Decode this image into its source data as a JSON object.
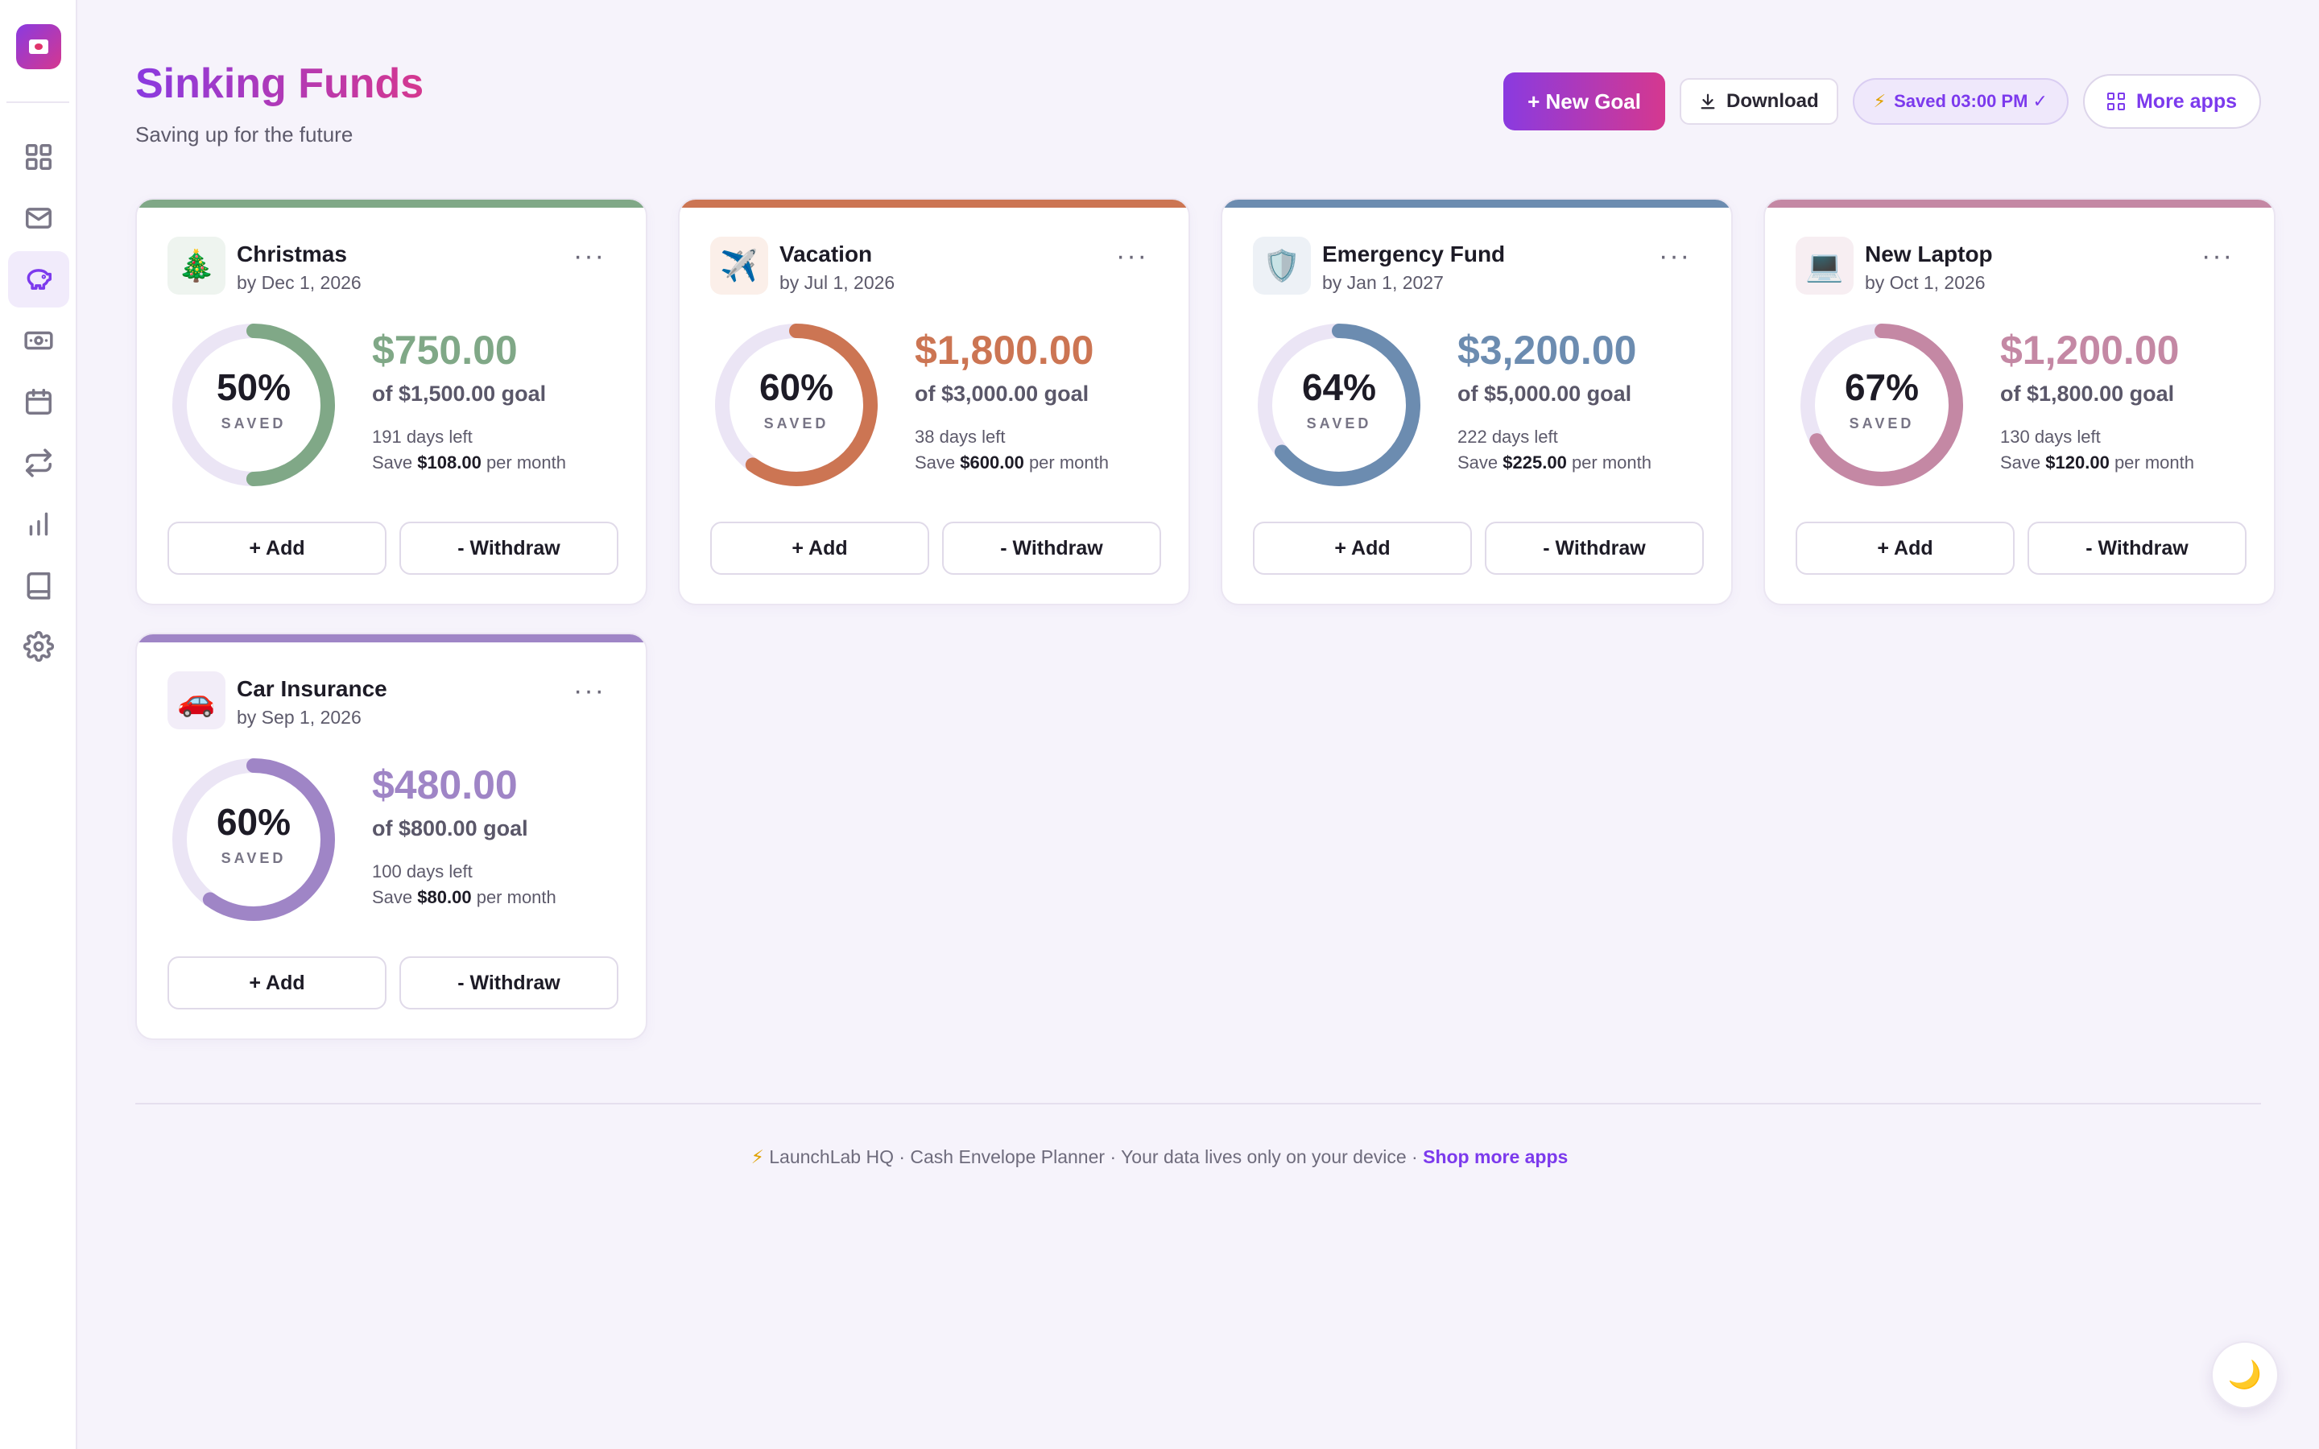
{
  "page": {
    "title": "Sinking Funds",
    "subtitle": "Saving up for the future"
  },
  "header": {
    "new_goal_label": "+ New Goal",
    "download_label": "Download",
    "saved_status": "Saved 03:00 PM ✓",
    "more_apps_label": "More apps"
  },
  "sidebar": {
    "items": [
      {
        "icon": "dashboard-icon",
        "active": false
      },
      {
        "icon": "envelope-icon",
        "active": false
      },
      {
        "icon": "piggy-bank-icon",
        "active": true
      },
      {
        "icon": "cash-icon",
        "active": false
      },
      {
        "icon": "calendar-icon",
        "active": false
      },
      {
        "icon": "repeat-icon",
        "active": false
      },
      {
        "icon": "bar-chart-icon",
        "active": false
      },
      {
        "icon": "book-icon",
        "active": false
      },
      {
        "icon": "settings-icon",
        "active": false
      }
    ]
  },
  "goals": [
    {
      "name": "Christmas",
      "emoji": "🎄",
      "date": "by Dec 1, 2026",
      "percent": "50%",
      "progress": 0.5,
      "saved_label": "SAVED",
      "amount": "$750.00",
      "goal": "of $1,500.00 goal",
      "days_left": "191 days left",
      "save_prefix": "Save",
      "monthly": "$108.00",
      "save_suffix": "per month",
      "color": "#80a887",
      "emoji_bg": "#eef4ef",
      "add_label": "+ Add",
      "withdraw_label": "- Withdraw",
      "menu": "···"
    },
    {
      "name": "Vacation",
      "emoji": "✈️",
      "date": "by Jul 1, 2026",
      "percent": "60%",
      "progress": 0.6,
      "saved_label": "SAVED",
      "amount": "$1,800.00",
      "goal": "of $3,000.00 goal",
      "days_left": "38 days left",
      "save_prefix": "Save",
      "monthly": "$600.00",
      "save_suffix": "per month",
      "color": "#cc7553",
      "emoji_bg": "#fbefe9",
      "add_label": "+ Add",
      "withdraw_label": "- Withdraw",
      "menu": "···"
    },
    {
      "name": "Emergency Fund",
      "emoji": "🛡️",
      "date": "by Jan 1, 2027",
      "percent": "64%",
      "progress": 0.64,
      "saved_label": "SAVED",
      "amount": "$3,200.00",
      "goal": "of $5,000.00 goal",
      "days_left": "222 days left",
      "save_prefix": "Save",
      "monthly": "$225.00",
      "save_suffix": "per month",
      "color": "#6c8cb0",
      "emoji_bg": "#edf1f6",
      "add_label": "+ Add",
      "withdraw_label": "- Withdraw",
      "menu": "···"
    },
    {
      "name": "New Laptop",
      "emoji": "💻",
      "date": "by Oct 1, 2026",
      "percent": "67%",
      "progress": 0.67,
      "saved_label": "SAVED",
      "amount": "$1,200.00",
      "goal": "of $1,800.00 goal",
      "days_left": "130 days left",
      "save_prefix": "Save",
      "monthly": "$120.00",
      "save_suffix": "per month",
      "color": "#c488a4",
      "emoji_bg": "#f7eef2",
      "add_label": "+ Add",
      "withdraw_label": "- Withdraw",
      "menu": "···"
    },
    {
      "name": "Car Insurance",
      "emoji": "🚗",
      "date": "by Sep 1, 2026",
      "percent": "60%",
      "progress": 0.6,
      "saved_label": "SAVED",
      "amount": "$480.00",
      "goal": "of $800.00 goal",
      "days_left": "100 days left",
      "save_prefix": "Save",
      "monthly": "$80.00",
      "save_suffix": "per month",
      "color": "#9f85c6",
      "emoji_bg": "#f2edf8",
      "add_label": "+ Add",
      "withdraw_label": "- Withdraw",
      "menu": "···"
    }
  ],
  "footer": {
    "text": "LaunchLab HQ · Cash Envelope Planner · Your data lives only on your device ·",
    "link": "Shop more apps"
  },
  "theme_toggle_icon": "moon-icon",
  "colors": {
    "accent": "#7c3aed",
    "brand_gradient_start": "#8a3ae0",
    "brand_gradient_end": "#d5388f",
    "ring_track": "#ebe5f5"
  }
}
